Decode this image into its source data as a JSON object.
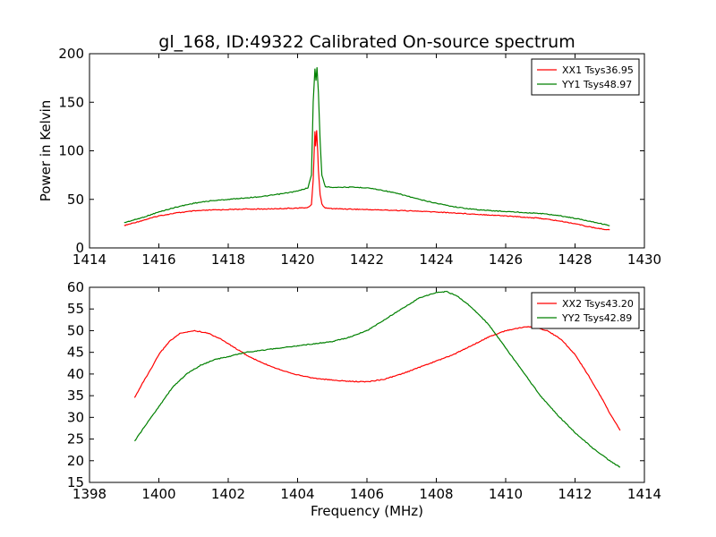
{
  "figure": {
    "title": "gl_168, ID:49322 Calibrated On-source spectrum"
  },
  "chart_data": [
    {
      "type": "line",
      "title": "gl_168, ID:49322 Calibrated On-source spectrum",
      "xlabel": "",
      "ylabel": "Power in Kelvin",
      "xlim": [
        1414,
        1430
      ],
      "ylim": [
        0,
        200
      ],
      "xticks": [
        1414,
        1416,
        1418,
        1420,
        1422,
        1424,
        1426,
        1428,
        1430
      ],
      "yticks": [
        0,
        50,
        100,
        150,
        200
      ],
      "grid": false,
      "legend": "top-right",
      "series": [
        {
          "name": "XX1 Tsys36.95",
          "color": "#ff0000",
          "x": [
            1415.0,
            1415.5,
            1416.0,
            1416.5,
            1417.0,
            1417.5,
            1418.0,
            1418.5,
            1419.0,
            1419.5,
            1420.0,
            1420.3,
            1420.4,
            1420.45,
            1420.5,
            1420.52,
            1420.55,
            1420.58,
            1420.6,
            1420.65,
            1420.7,
            1420.8,
            1421.0,
            1421.5,
            1422.0,
            1423.0,
            1424.0,
            1425.0,
            1426.0,
            1427.0,
            1427.5,
            1428.0,
            1428.5,
            1429.0
          ],
          "y": [
            23,
            28,
            33,
            36,
            38,
            39,
            39.5,
            40,
            40,
            40.5,
            41,
            41.5,
            45,
            70,
            120,
            105,
            121,
            100,
            80,
            55,
            45,
            41,
            40.5,
            40,
            39.5,
            38.5,
            37,
            35,
            33,
            30.5,
            28,
            25,
            21,
            18.5
          ]
        },
        {
          "name": "YY1 Tsys48.97",
          "color": "#008000",
          "x": [
            1415.0,
            1415.5,
            1416.0,
            1416.5,
            1417.0,
            1417.5,
            1418.0,
            1418.5,
            1419.0,
            1419.5,
            1420.0,
            1420.3,
            1420.4,
            1420.45,
            1420.5,
            1420.53,
            1420.56,
            1420.6,
            1420.65,
            1420.7,
            1420.8,
            1421.0,
            1421.5,
            1422.0,
            1422.5,
            1423.0,
            1423.5,
            1424.0,
            1424.5,
            1425.0,
            1425.5,
            1426.0,
            1426.5,
            1427.0,
            1427.5,
            1428.0,
            1428.5,
            1429.0
          ],
          "y": [
            26,
            31,
            37,
            42,
            46,
            48.5,
            50,
            51.5,
            53,
            55.5,
            58.5,
            62,
            75,
            150,
            185,
            172,
            186,
            160,
            110,
            75,
            63,
            62.5,
            62.5,
            62,
            59,
            55,
            50,
            46,
            42.5,
            40,
            38.5,
            37.5,
            36.5,
            35.5,
            33.5,
            30.5,
            27,
            23
          ]
        }
      ]
    },
    {
      "type": "line",
      "title": "",
      "xlabel": "Frequency (MHz)",
      "ylabel": "",
      "xlim": [
        1398,
        1414
      ],
      "ylim": [
        15,
        60
      ],
      "xticks": [
        1398,
        1400,
        1402,
        1404,
        1406,
        1408,
        1410,
        1412,
        1414
      ],
      "yticks": [
        15,
        20,
        25,
        30,
        35,
        40,
        45,
        50,
        55,
        60
      ],
      "grid": false,
      "legend": "top-right",
      "series": [
        {
          "name": "XX2 Tsys43.20",
          "color": "#ff0000",
          "x": [
            1399.3,
            1399.5,
            1399.8,
            1400.0,
            1400.3,
            1400.6,
            1401.0,
            1401.4,
            1401.8,
            1402.2,
            1402.6,
            1403.0,
            1403.5,
            1404.0,
            1404.5,
            1405.0,
            1405.5,
            1406.0,
            1406.5,
            1407.0,
            1407.5,
            1408.0,
            1408.5,
            1409.0,
            1409.5,
            1410.0,
            1410.5,
            1410.8,
            1411.2,
            1411.6,
            1412.0,
            1412.4,
            1412.8,
            1413.0,
            1413.3
          ],
          "y": [
            34.5,
            37.5,
            41.5,
            44.5,
            47.5,
            49.3,
            50,
            49.5,
            48,
            46,
            44,
            42.5,
            41,
            39.8,
            39,
            38.6,
            38.3,
            38.2,
            38.8,
            40,
            41.5,
            43,
            44.5,
            46.5,
            48.5,
            50,
            50.8,
            50.9,
            50,
            48,
            44.5,
            39.5,
            34,
            31,
            27
          ]
        },
        {
          "name": "YY2 Tsys42.89",
          "color": "#008000",
          "x": [
            1399.3,
            1399.6,
            1400.0,
            1400.4,
            1400.8,
            1401.2,
            1401.6,
            1402.0,
            1402.5,
            1403.0,
            1403.5,
            1404.0,
            1404.5,
            1405.0,
            1405.5,
            1406.0,
            1406.5,
            1407.0,
            1407.5,
            1408.0,
            1408.3,
            1408.6,
            1409.0,
            1409.5,
            1410.0,
            1410.5,
            1411.0,
            1411.5,
            1412.0,
            1412.5,
            1413.0,
            1413.3
          ],
          "y": [
            24.5,
            28,
            32.5,
            37,
            40,
            42,
            43.3,
            44,
            45,
            45.5,
            46,
            46.5,
            47,
            47.5,
            48.5,
            50,
            52.5,
            55,
            57.5,
            58.8,
            59,
            58,
            55.5,
            51.5,
            46,
            40.5,
            35,
            30.5,
            26.5,
            23,
            20,
            18.5
          ]
        }
      ]
    }
  ]
}
